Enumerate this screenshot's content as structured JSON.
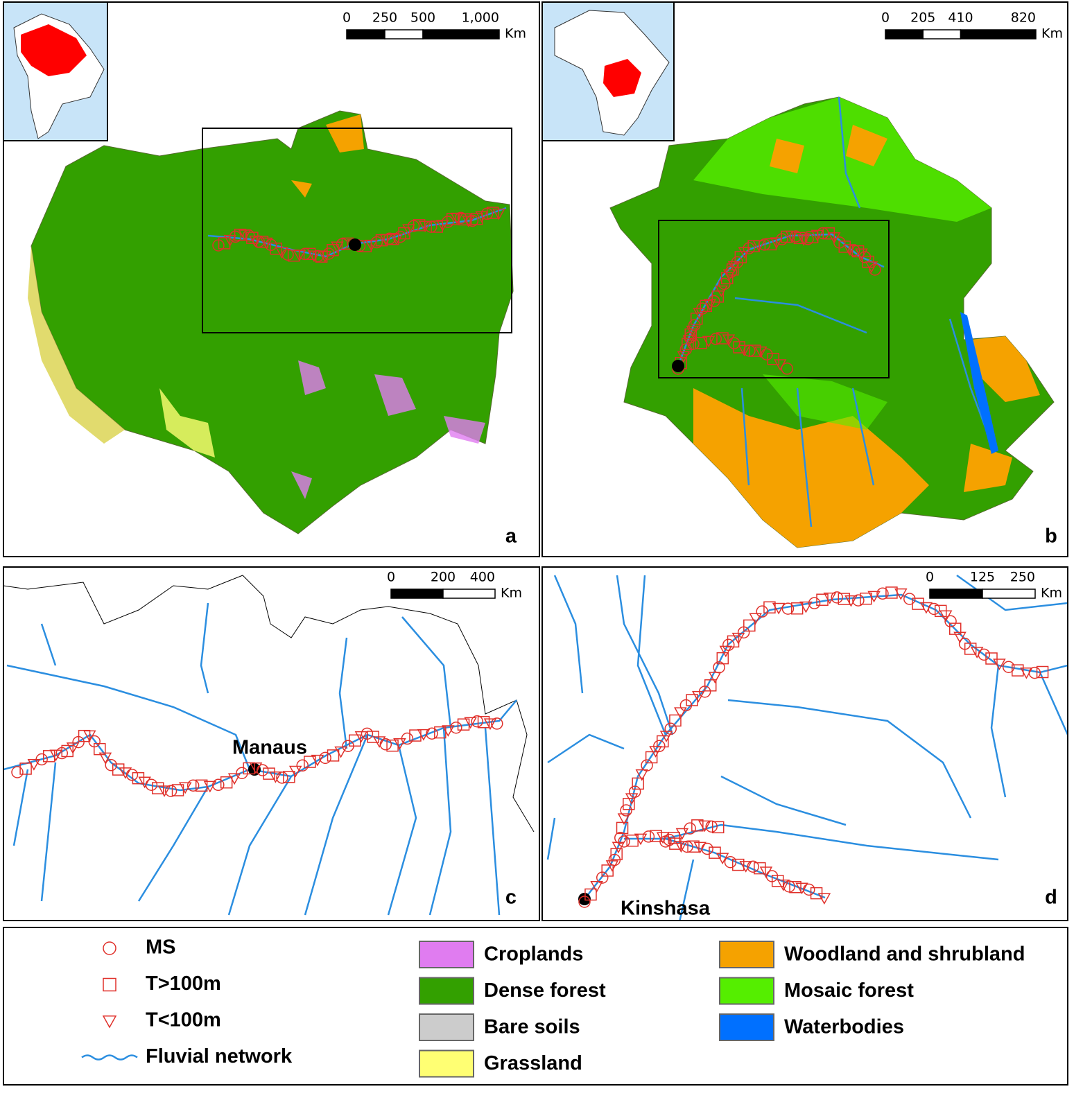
{
  "panels": [
    {
      "letter": "a",
      "scale_bar": {
        "ticks": [
          0,
          250,
          500,
          {
            "value": 1000,
            "label": "1,000"
          }
        ],
        "unit": "Km"
      }
    },
    {
      "letter": "b",
      "scale_bar": {
        "ticks": [
          0,
          205,
          410,
          820
        ],
        "unit": "Km"
      }
    },
    {
      "letter": "c",
      "scale_bar": {
        "ticks": [
          0,
          200,
          400
        ],
        "unit": "Km"
      },
      "city": "Manaus"
    },
    {
      "letter": "d",
      "scale_bar": {
        "ticks": [
          0,
          125,
          250
        ],
        "unit": "Km"
      },
      "city": "Kinshasa"
    }
  ],
  "legend": {
    "symbols": [
      "MS",
      "T>100m",
      "T<100m",
      "Fluvial network"
    ],
    "land_cover": [
      {
        "label": "Croplands",
        "color": "#e07cf0"
      },
      {
        "label": "Dense forest",
        "color": "#33a000"
      },
      {
        "label": "Bare soils",
        "color": "#cccccc"
      },
      {
        "label": "Grassland",
        "color": "#ffff73"
      },
      {
        "label": "Woodland and shrubland",
        "color": "#f5a200"
      },
      {
        "label": "Mosaic forest",
        "color": "#55ee00"
      },
      {
        "label": "Waterbodies",
        "color": "#0070ff"
      }
    ]
  }
}
